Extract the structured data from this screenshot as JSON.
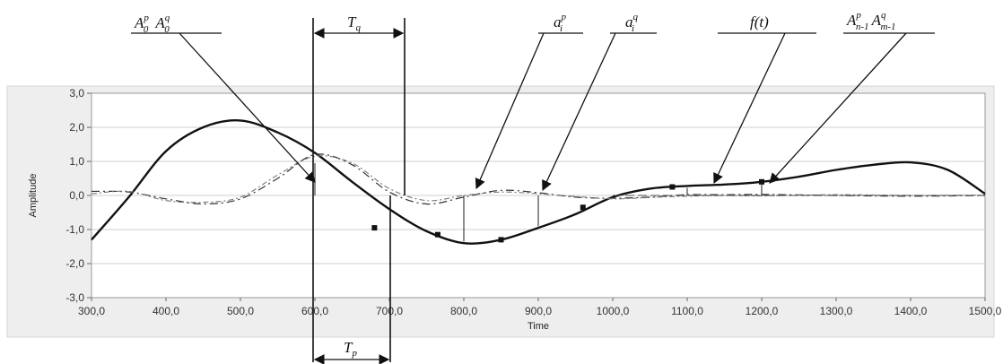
{
  "chart_data": {
    "type": "line",
    "xlabel": "Time",
    "ylabel": "Amplitude",
    "xlim": [
      300,
      1500
    ],
    "ylim": [
      -3,
      3
    ],
    "xticks": [
      "300,0",
      "400,0",
      "500,0",
      "600,0",
      "700,0",
      "800,0",
      "900,0",
      "1000,0",
      "1100,0",
      "1200,0",
      "1300,0",
      "1400,0",
      "1500,0"
    ],
    "yticks": [
      "3,0",
      "2,0",
      "1,0",
      "0,0",
      "-1,0",
      "-2,0",
      "-3,0"
    ],
    "grid": true,
    "series": [
      {
        "style": "solid-bold",
        "x": [
          300,
          350,
          400,
          450,
          500,
          550,
          600,
          650,
          700,
          750,
          800,
          850,
          900,
          950,
          1000,
          1050,
          1100,
          1150,
          1200,
          1250,
          1300,
          1350,
          1400,
          1450,
          1500
        ],
        "y": [
          -1.3,
          -0.05,
          1.3,
          2.0,
          2.2,
          1.85,
          1.25,
          0.4,
          -0.4,
          -1.05,
          -1.4,
          -1.3,
          -0.95,
          -0.55,
          -0.05,
          0.2,
          0.28,
          0.32,
          0.4,
          0.55,
          0.75,
          0.9,
          0.97,
          0.75,
          0.05
        ]
      },
      {
        "style": "dash-dot",
        "x": [
          300,
          350,
          400,
          450,
          500,
          550,
          600,
          650,
          700,
          750,
          800,
          850,
          900,
          950,
          1000,
          1050,
          1100,
          1150,
          1200,
          1300,
          1400,
          1500
        ],
        "y": [
          0.12,
          0.1,
          -0.1,
          -0.25,
          -0.1,
          0.5,
          1.2,
          0.9,
          0.1,
          -0.25,
          -0.05,
          0.15,
          0.08,
          -0.05,
          -0.08,
          -0.05,
          0.02,
          0.02,
          0.03,
          0.0,
          -0.02,
          0.0
        ]
      },
      {
        "style": "dash-dot-light",
        "x": [
          300,
          350,
          400,
          450,
          500,
          550,
          600,
          650,
          700,
          750,
          800,
          850,
          900,
          950,
          1000,
          1050,
          1100,
          1150,
          1200,
          1300,
          1400,
          1500
        ],
        "y": [
          0.05,
          0.12,
          -0.15,
          -0.2,
          -0.05,
          0.6,
          1.15,
          0.95,
          0.2,
          -0.15,
          0.0,
          0.1,
          0.05,
          -0.03,
          -0.1,
          -0.06,
          -0.02,
          0.0,
          -0.01,
          0.02,
          0.0,
          0.01
        ]
      }
    ],
    "markers": {
      "x": [
        680,
        765,
        850,
        960,
        1080,
        1200
      ],
      "y": [
        -0.95,
        -1.15,
        -1.3,
        -0.35,
        0.25,
        0.4
      ]
    },
    "vlines": [
      {
        "x": 600,
        "y0": 0.95,
        "y1": 0.0
      },
      {
        "x": 800,
        "y0": -1.35,
        "y1": 0.0
      },
      {
        "x": 900,
        "y0": -0.9,
        "y1": 0.0
      },
      {
        "x": 1100,
        "y0": 0.22,
        "y1": 0.0
      },
      {
        "x": 1200,
        "y0": 0.38,
        "y1": 0.0
      }
    ]
  },
  "annotations": {
    "a0": {
      "main": "A",
      "sup1": "p",
      "sub1": "0",
      "main2": "A",
      "sup2": "q",
      "sub2": "0"
    },
    "tq": {
      "main": "T",
      "sub": "q"
    },
    "tp": {
      "main": "T",
      "sub": "p"
    },
    "aip": {
      "main": "a",
      "sub": "i",
      "sup": "p"
    },
    "aiq": {
      "main": "a",
      "sub": "i",
      "sup": "q"
    },
    "ft": {
      "text": "f(t)"
    },
    "an": {
      "main": "A",
      "sup1": "p",
      "sub1": "n-1",
      "main2": "A",
      "sup2": "q",
      "sub2": "m-1"
    }
  }
}
